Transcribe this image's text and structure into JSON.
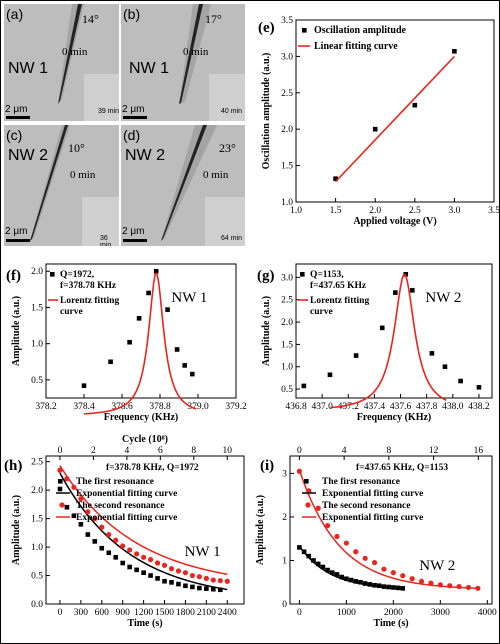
{
  "micro": [
    {
      "id": "a",
      "label": "(a)",
      "angle": "14°",
      "time": "0 min",
      "nw": "NW 1",
      "scale": "2 μm",
      "inset": "39 min"
    },
    {
      "id": "b",
      "label": "(b)",
      "angle": "17°",
      "time": "0 min",
      "nw": "NW 1",
      "scale": "2 μm",
      "inset": "40 min"
    },
    {
      "id": "c",
      "label": "(c)",
      "angle": "10°",
      "time": "0 min",
      "nw": "NW 2",
      "scale": "2 μm",
      "inset": "36 min"
    },
    {
      "id": "d",
      "label": "(d)",
      "angle": "23°",
      "time": "0 min",
      "nw": "NW 2",
      "scale": "2 μm",
      "inset": "64 min"
    }
  ],
  "chart_data": [
    {
      "id": "e",
      "type": "scatter",
      "label": "(e)",
      "xlabel": "Applied voltage (V)",
      "ylabel": "Oscillation amplitude (a.u.)",
      "xlim": [
        1.0,
        3.5
      ],
      "ylim": [
        1.0,
        3.5
      ],
      "xticks": [
        "1.0",
        "1.5",
        "2.0",
        "2.5",
        "3.0",
        "3.5"
      ],
      "yticks": [
        "1.0",
        "1.5",
        "2.0",
        "2.5",
        "3.0",
        "3.5"
      ],
      "series": [
        {
          "name": "Oscillation amplitude",
          "x": [
            1.5,
            2.0,
            2.5,
            3.0
          ],
          "y": [
            1.32,
            2.0,
            2.33,
            3.07
          ]
        },
        {
          "name": "Linear fitting curve",
          "x": [
            1.5,
            3.0
          ],
          "y": [
            1.28,
            3.0
          ]
        }
      ]
    },
    {
      "id": "f",
      "type": "scatter",
      "label": "(f)",
      "annotation": "NW 1",
      "xlabel": "Frequency (KHz)",
      "ylabel": "Amplitude (a.u.)",
      "xlim": [
        378.2,
        379.2
      ],
      "ylim": [
        0.25,
        2.1
      ],
      "xticks": [
        "378.2",
        "378.4",
        "378.6",
        "378.8",
        "379.0",
        "379.2"
      ],
      "yticks": [
        "0.5",
        "1.0",
        "1.5",
        "2.0"
      ],
      "series": [
        {
          "name": "Q=1972, f=378.78 KHz",
          "x": [
            378.4,
            378.54,
            378.64,
            378.69,
            378.74,
            378.78,
            378.84,
            378.89,
            378.93,
            378.97
          ],
          "y": [
            0.42,
            0.75,
            1.02,
            1.35,
            1.7,
            2.0,
            1.47,
            0.92,
            0.7,
            0.58
          ]
        },
        {
          "name": "Lorentz fitting curve",
          "f0": 378.78,
          "gamma": 0.096,
          "peak": 1.98,
          "offset": 0.0
        }
      ]
    },
    {
      "id": "g",
      "type": "scatter",
      "label": "(g)",
      "annotation": "NW 2",
      "xlabel": "Frequency (KHz)",
      "ylabel": "Amplitude (a.u.)",
      "xlim": [
        436.8,
        438.3
      ],
      "ylim": [
        0.3,
        3.3
      ],
      "xticks": [
        "436.8",
        "437.0",
        "437.2",
        "437.4",
        "437.6",
        "437.8",
        "438.0",
        "438.2"
      ],
      "yticks": [
        "0.5",
        "1.0",
        "1.5",
        "2.0",
        "2.5",
        "3.0"
      ],
      "series": [
        {
          "name": "Q=1153, f=437.65 KHz",
          "x": [
            436.86,
            437.06,
            437.26,
            437.46,
            437.56,
            437.64,
            437.69,
            437.84,
            437.94,
            438.06,
            438.2
          ],
          "y": [
            0.57,
            0.82,
            1.25,
            1.87,
            2.66,
            3.07,
            2.71,
            1.3,
            1.0,
            0.68,
            0.54
          ]
        },
        {
          "name": "Lorentz fitting curve",
          "f0": 437.63,
          "gamma": 0.19,
          "peak": 3.07,
          "offset": 0.0
        }
      ]
    },
    {
      "id": "h",
      "type": "scatter",
      "label": "(h)",
      "annotation": "NW 1",
      "subtitle": "f=378.78 KHz, Q=1972",
      "xlabel": "Time (s)",
      "ylabel": "Amplitude (a.u.)",
      "toplabel": "Cycle (10⁸)",
      "xlim": [
        -200,
        2640
      ],
      "ylim": [
        0.0,
        2.6
      ],
      "xticks": [
        "0",
        "300",
        "600",
        "900",
        "1200",
        "1500",
        "1800",
        "2100",
        "2400"
      ],
      "yticks": [
        "0.0",
        "0.5",
        "1.0",
        "1.5",
        "2.0",
        "2.5"
      ],
      "topticks": [
        "0",
        "2",
        "4",
        "6",
        "8",
        "10"
      ],
      "series": [
        {
          "name": "The first resonance",
          "x": [
            0,
            100,
            200,
            300,
            400,
            500,
            600,
            700,
            800,
            900,
            1000,
            1100,
            1200,
            1300,
            1400,
            1500,
            1600,
            1700,
            1800,
            1900,
            2000,
            2100,
            2200,
            2300
          ],
          "y": [
            2.02,
            1.7,
            1.55,
            1.4,
            1.22,
            1.1,
            0.98,
            0.9,
            0.82,
            0.72,
            0.65,
            0.6,
            0.55,
            0.5,
            0.45,
            0.4,
            0.38,
            0.35,
            0.32,
            0.3,
            0.28,
            0.27,
            0.26,
            0.25
          ]
        },
        {
          "name": "Exponential fitting curve",
          "A": 2.25,
          "tau": 1000,
          "c": 0.05,
          "x0": 0,
          "x1": 2400
        },
        {
          "name": "The second resonance",
          "x": [
            0,
            100,
            200,
            300,
            400,
            500,
            600,
            700,
            800,
            900,
            1000,
            1100,
            1200,
            1300,
            1400,
            1500,
            1600,
            1700,
            1800,
            1900,
            2000,
            2100,
            2200,
            2300,
            2400
          ],
          "y": [
            2.35,
            2.2,
            2.05,
            1.85,
            1.62,
            1.5,
            1.35,
            1.22,
            1.12,
            1.02,
            0.95,
            0.88,
            0.82,
            0.78,
            0.72,
            0.68,
            0.62,
            0.58,
            0.55,
            0.5,
            0.48,
            0.45,
            0.42,
            0.41,
            0.4
          ]
        },
        {
          "name": "Exponential fitting curve",
          "A": 2.15,
          "tau": 1100,
          "c": 0.28,
          "x0": 0,
          "x1": 2400
        }
      ]
    },
    {
      "id": "i",
      "type": "scatter",
      "label": "(i)",
      "annotation": "NW 2",
      "subtitle": "f=437.65 KHz, Q=1153",
      "xlabel": "Time (s)",
      "ylabel": "Amplitude (a.u.)",
      "xlim": [
        -200,
        4100
      ],
      "ylim": [
        0.0,
        3.4
      ],
      "xticks": [
        "0",
        "1000",
        "2000",
        "3000",
        "4000"
      ],
      "yticks": [
        "0",
        "1",
        "2",
        "3"
      ],
      "topticks": [
        "0",
        "4",
        "8",
        "12",
        "16"
      ],
      "series": [
        {
          "name": "The first resonance",
          "x": [
            0,
            100,
            200,
            300,
            400,
            500,
            600,
            700,
            800,
            900,
            1000,
            1100,
            1200,
            1300,
            1400,
            1500,
            1600,
            1700,
            1800,
            1900,
            2000,
            2100,
            2200
          ],
          "y": [
            1.3,
            1.2,
            1.1,
            1.0,
            0.92,
            0.85,
            0.78,
            0.72,
            0.68,
            0.62,
            0.58,
            0.55,
            0.52,
            0.5,
            0.47,
            0.45,
            0.43,
            0.42,
            0.4,
            0.39,
            0.38,
            0.37,
            0.36
          ]
        },
        {
          "name": "Exponential fitting curve",
          "A": 1.0,
          "tau": 650,
          "c": 0.33,
          "x0": 0,
          "x1": 2200
        },
        {
          "name": "The second resonance",
          "x": [
            0,
            200,
            400,
            600,
            800,
            1000,
            1200,
            1400,
            1600,
            1800,
            2000,
            2200,
            2400,
            2600,
            2800,
            3000,
            3200,
            3400,
            3600,
            3800
          ],
          "y": [
            3.05,
            2.6,
            2.2,
            1.8,
            1.55,
            1.4,
            1.2,
            1.05,
            0.95,
            0.8,
            0.72,
            0.65,
            0.58,
            0.52,
            0.48,
            0.44,
            0.42,
            0.4,
            0.38,
            0.36
          ]
        },
        {
          "name": "Exponential fitting curve",
          "A": 2.75,
          "tau": 850,
          "c": 0.33,
          "x0": 0,
          "x1": 3800
        }
      ]
    }
  ]
}
